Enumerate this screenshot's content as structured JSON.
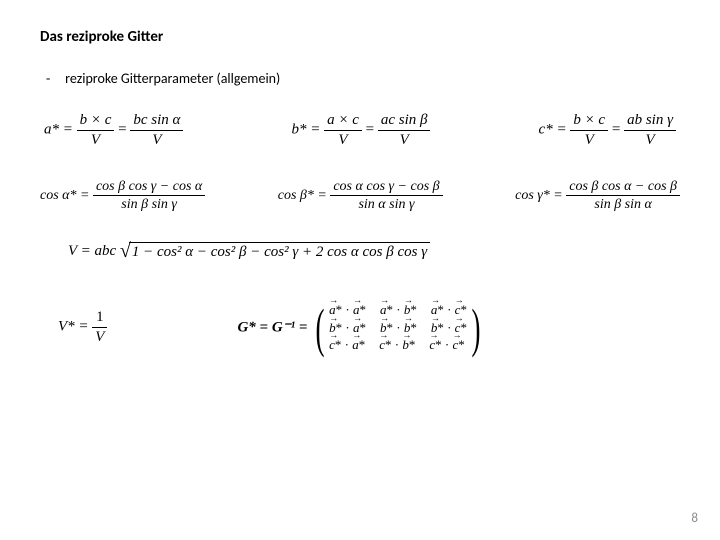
{
  "title": "Das reziproke Gitter",
  "bullet": "reziproke Gitterparameter (allgemein)",
  "page_number": "8",
  "row1": {
    "a": {
      "lhs": "a* =",
      "num1": "b × c",
      "den1": "V",
      "num2": "bc sin α",
      "den2": "V"
    },
    "b": {
      "lhs": "b* =",
      "num1": "a × c",
      "den1": "V",
      "num2": "ac sin β",
      "den2": "V"
    },
    "c": {
      "lhs": "c* =",
      "num1": "b × c",
      "den1": "V",
      "num2": "ab sin γ",
      "den2": "V"
    }
  },
  "row2": {
    "a": {
      "lhs": "cos α* =",
      "num": "cos β cos γ − cos α",
      "den": "sin β sin γ"
    },
    "b": {
      "lhs": "cos β* =",
      "num": "cos α cos γ − cos β",
      "den": "sin α sin γ"
    },
    "c": {
      "lhs": "cos γ* =",
      "num": "cos β cos α − cos β",
      "den": "sin β sin α"
    }
  },
  "volume": {
    "lhs": "V = abc",
    "radicand": "1 − cos² α − cos² β − cos² γ + 2 cos α cos β cos γ"
  },
  "vstar": {
    "lhs": "V* =",
    "num": "1",
    "den": "V"
  },
  "metric": {
    "lhs": "G* = G⁻¹ =",
    "cells": [
      [
        "a*·a*",
        "a*·b*",
        "a*·c*"
      ],
      [
        "b*·a*",
        "b*·b*",
        "b*·c*"
      ],
      [
        "c*·a*",
        "c*·b*",
        "c*·c*"
      ]
    ]
  },
  "colors": {
    "text": "#000000",
    "bg": "#ffffff",
    "page_num": "#8a8a8a"
  }
}
